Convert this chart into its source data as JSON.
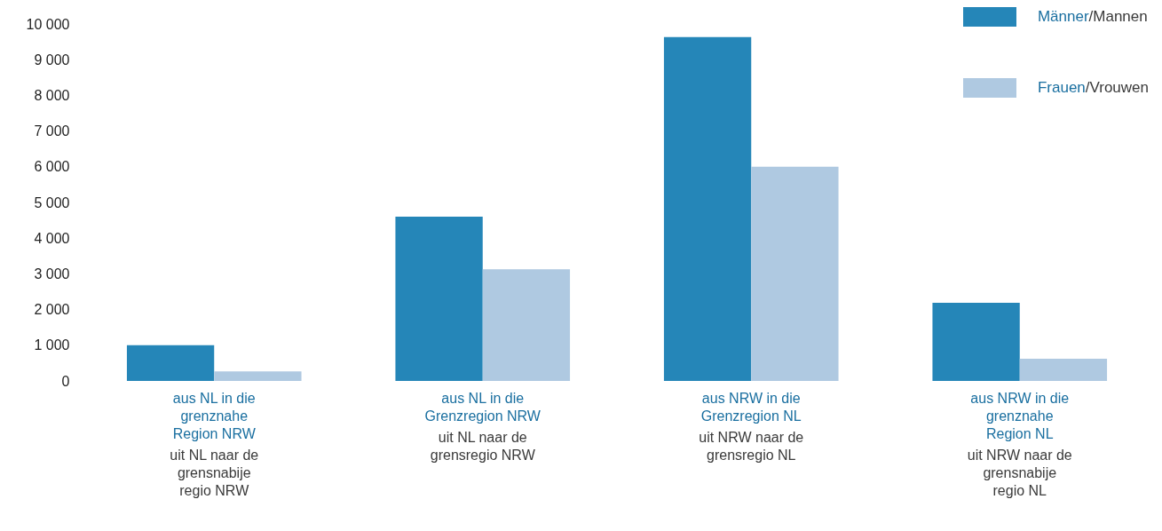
{
  "chart_data": {
    "type": "bar",
    "categories": [
      "aus NL in die\ngrenznahe\nRegion NRW",
      "aus NL in die\nGrenzregion NRW",
      "aus NRW in die\nGrenzregion NL",
      "aus NRW in die\ngrenznahe\nRegion NL"
    ],
    "annotations": [
      "uit NL naar de\ngrensnabije\nregio NRW",
      "uit NL naar de\ngrensregio NRW",
      "uit NRW naar de\ngrensregio NL",
      "uit NRW naar de\ngrensnabije\nregio NL"
    ],
    "series": [
      {
        "name": "Männer/Mannen",
        "color": "#2586b8",
        "values": [
          1000,
          4600,
          9630,
          2190
        ]
      },
      {
        "name": "Frauen/Vrouwen",
        "color": "#afc9e1",
        "values": [
          270,
          3130,
          6000,
          620
        ]
      }
    ],
    "ylim": [
      0,
      10000
    ],
    "yticks": [
      0,
      {
        "value": 1000,
        "label": "1 000"
      },
      {
        "value": 2000,
        "label": "2 000"
      },
      {
        "value": 3000,
        "label": "3 000"
      },
      {
        "value": 4000,
        "label": "4 000"
      },
      {
        "value": 5000,
        "label": "5 000"
      },
      {
        "value": 6000,
        "label": "6 000"
      },
      {
        "value": 7000,
        "label": "7 000"
      },
      {
        "value": 8000,
        "label": "8 000"
      },
      {
        "value": 9000,
        "label": "9 000"
      },
      {
        "value": 10000,
        "label": "10 000"
      }
    ],
    "grid": false,
    "legend": "top right"
  }
}
